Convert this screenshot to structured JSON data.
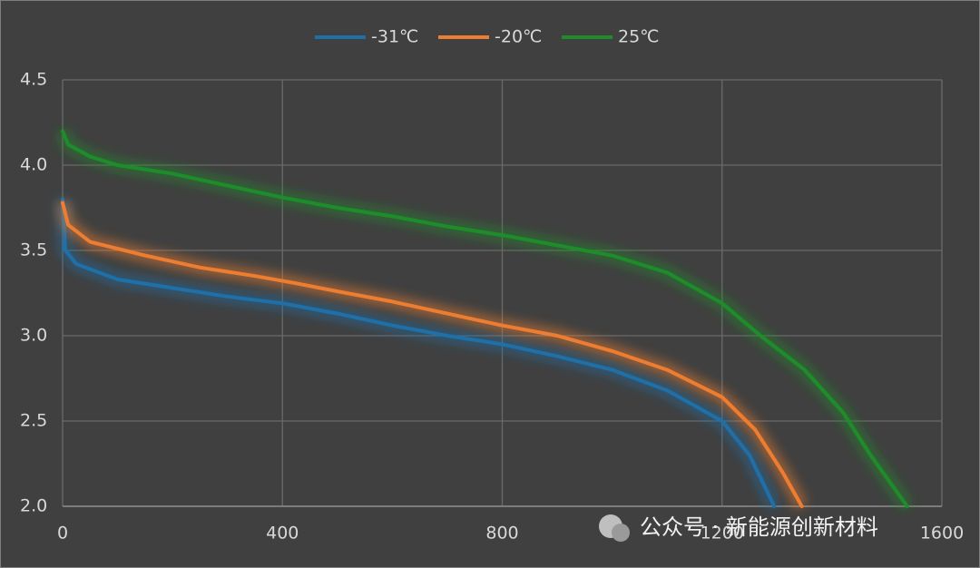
{
  "chart_data": {
    "type": "line",
    "series": [
      {
        "name": "-31℃",
        "color": "#1f6fa8",
        "x": [
          0,
          5,
          25,
          100,
          200,
          300,
          400,
          500,
          600,
          700,
          800,
          900,
          1000,
          1100,
          1200,
          1250,
          1280,
          1295
        ],
        "values": [
          3.8,
          3.5,
          3.42,
          3.33,
          3.28,
          3.23,
          3.19,
          3.13,
          3.06,
          3.0,
          2.95,
          2.88,
          2.8,
          2.68,
          2.5,
          2.3,
          2.1,
          2.0
        ]
      },
      {
        "name": "-20℃",
        "color": "#ed7d31",
        "x": [
          0,
          10,
          50,
          150,
          250,
          350,
          420,
          500,
          600,
          700,
          800,
          900,
          1000,
          1100,
          1200,
          1260,
          1310,
          1345
        ],
        "values": [
          3.78,
          3.65,
          3.55,
          3.47,
          3.4,
          3.35,
          3.31,
          3.26,
          3.2,
          3.13,
          3.06,
          3.0,
          2.91,
          2.8,
          2.64,
          2.45,
          2.2,
          2.0
        ]
      },
      {
        "name": "25℃",
        "color": "#1e8c2a",
        "x": [
          0,
          10,
          50,
          100,
          200,
          300,
          400,
          500,
          600,
          700,
          800,
          900,
          1000,
          1100,
          1200,
          1270,
          1350,
          1420,
          1470,
          1537
        ],
        "values": [
          4.2,
          4.12,
          4.05,
          4.0,
          3.95,
          3.88,
          3.81,
          3.75,
          3.7,
          3.64,
          3.59,
          3.53,
          3.47,
          3.37,
          3.19,
          3.0,
          2.8,
          2.55,
          2.3,
          2.0
        ]
      }
    ],
    "xlim": [
      0,
      1600
    ],
    "xticks": [
      0,
      400,
      800,
      1200,
      1600
    ],
    "ylim": [
      2.0,
      4.5
    ],
    "yticks": [
      {
        "value": 2.0,
        "label": "2.0"
      },
      2.5,
      {
        "value": 3.0,
        "label": "3.0"
      },
      3.5,
      {
        "value": 4.0,
        "label": "4.0"
      },
      4.5
    ],
    "grid": true,
    "legend": "top"
  },
  "watermark": "公众号 · 新能源创新材料"
}
